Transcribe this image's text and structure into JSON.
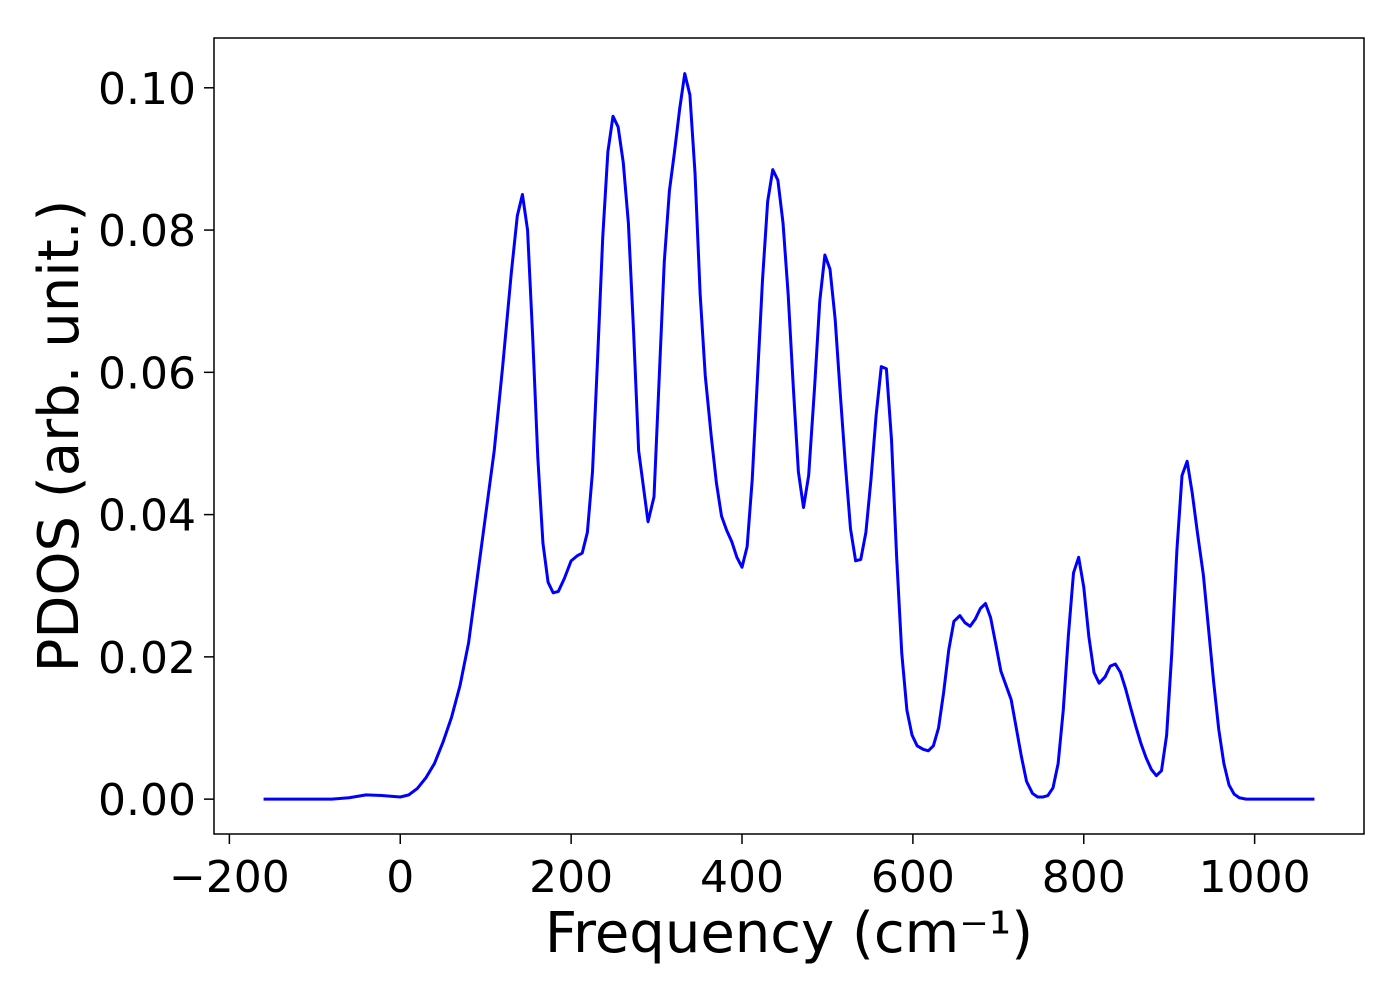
{
  "chart_data": {
    "type": "line",
    "x_label": "Frequency (cm⁻¹)",
    "y_label": "PDOS (arb. unit.)",
    "xlim": [
      -218,
      1128
    ],
    "ylim": [
      -0.0049,
      0.107
    ],
    "xticks": [
      {
        "value": -200,
        "label": "−200"
      },
      0,
      200,
      400,
      600,
      800,
      1000
    ],
    "yticks": [
      {
        "value": 0,
        "label": "0.00"
      },
      0.02,
      0.04,
      0.06,
      0.08,
      {
        "value": 0.1,
        "label": "0.10"
      }
    ],
    "series": [
      {
        "color": "#0000ff",
        "x": [
          -160,
          -80,
          -60,
          -40,
          -20,
          0,
          10,
          20,
          30,
          40,
          50,
          60,
          70,
          80,
          90,
          100,
          110,
          120,
          130,
          137,
          143,
          149,
          155,
          161,
          167,
          173,
          179,
          185,
          192,
          200,
          207,
          213,
          219,
          225,
          231,
          237,
          243,
          249,
          255,
          261,
          267,
          273,
          279,
          290,
          297,
          303,
          309,
          315,
          321,
          327,
          333,
          339,
          345,
          351,
          357,
          364,
          370,
          376,
          382,
          388,
          394,
          400,
          406,
          412,
          418,
          424,
          430,
          436,
          442,
          448,
          454,
          460,
          466,
          472,
          478,
          485,
          491,
          497,
          503,
          509,
          515,
          521,
          527,
          533,
          539,
          545,
          551,
          557,
          563,
          569,
          575,
          581,
          587,
          593,
          599,
          605,
          612,
          618,
          624,
          630,
          636,
          642,
          648,
          655,
          661,
          667,
          673,
          679,
          685,
          691,
          697,
          703,
          709,
          715,
          721,
          727,
          733,
          740,
          746,
          752,
          758,
          764,
          770,
          776,
          782,
          788,
          794,
          800,
          806,
          812,
          818,
          825,
          831,
          837,
          843,
          849,
          855,
          861,
          867,
          873,
          879,
          885,
          891,
          897,
          903,
          909,
          915,
          921,
          927,
          933,
          940,
          946,
          952,
          958,
          964,
          970,
          976,
          982,
          990,
          1000,
          1070
        ],
        "values": [
          0,
          0,
          0.0002,
          0.0006,
          0.0005,
          0.0003,
          0.0006,
          0.0015,
          0.003,
          0.005,
          0.008,
          0.0115,
          0.016,
          0.022,
          0.031,
          0.04,
          0.049,
          0.061,
          0.074,
          0.082,
          0.085,
          0.08,
          0.065,
          0.048,
          0.036,
          0.0305,
          0.029,
          0.0292,
          0.031,
          0.0335,
          0.0342,
          0.0346,
          0.0375,
          0.046,
          0.062,
          0.079,
          0.091,
          0.096,
          0.0945,
          0.0895,
          0.081,
          0.066,
          0.049,
          0.039,
          0.0425,
          0.059,
          0.0755,
          0.0855,
          0.091,
          0.097,
          0.102,
          0.099,
          0.088,
          0.071,
          0.0595,
          0.051,
          0.0445,
          0.0398,
          0.0378,
          0.0362,
          0.034,
          0.0326,
          0.0355,
          0.045,
          0.059,
          0.073,
          0.084,
          0.0885,
          0.087,
          0.081,
          0.071,
          0.058,
          0.046,
          0.041,
          0.0455,
          0.058,
          0.07,
          0.0765,
          0.0745,
          0.0675,
          0.057,
          0.047,
          0.038,
          0.0335,
          0.0337,
          0.0375,
          0.045,
          0.054,
          0.0608,
          0.0605,
          0.0505,
          0.034,
          0.0205,
          0.0125,
          0.009,
          0.0075,
          0.007,
          0.0068,
          0.0075,
          0.01,
          0.015,
          0.021,
          0.025,
          0.0258,
          0.0248,
          0.0243,
          0.0253,
          0.0268,
          0.0275,
          0.0255,
          0.0218,
          0.018,
          0.016,
          0.014,
          0.01,
          0.006,
          0.0025,
          0.0008,
          0.0003,
          0.0003,
          0.0005,
          0.0016,
          0.005,
          0.0125,
          0.023,
          0.0318,
          0.034,
          0.0298,
          0.0228,
          0.0178,
          0.0163,
          0.0172,
          0.0187,
          0.019,
          0.0178,
          0.0155,
          0.0128,
          0.0102,
          0.0078,
          0.0058,
          0.0042,
          0.0033,
          0.004,
          0.009,
          0.0205,
          0.035,
          0.0455,
          0.0475,
          0.043,
          0.0375,
          0.0315,
          0.024,
          0.0165,
          0.0098,
          0.005,
          0.002,
          0.0007,
          0.0002,
          0,
          0,
          0
        ]
      }
    ]
  }
}
